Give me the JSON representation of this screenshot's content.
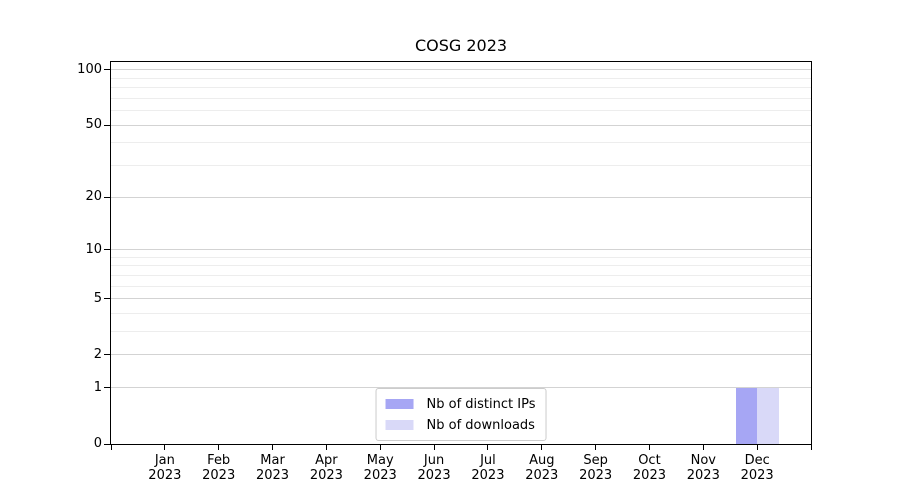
{
  "figure": {
    "background": "#ffffff",
    "spine_color": "#000000",
    "grid_color_major": "#d3d3d3",
    "grid_color_minor": "#ededed"
  },
  "chart_data": {
    "type": "bar",
    "title": "COSG 2023",
    "xlabel": "",
    "ylabel": "",
    "categories": [
      "Jan 2023",
      "Feb 2023",
      "Mar 2023",
      "Apr 2023",
      "May 2023",
      "Jun 2023",
      "Jul 2023",
      "Aug 2023",
      "Sep 2023",
      "Oct 2023",
      "Nov 2023",
      "Dec 2023"
    ],
    "series": [
      {
        "name": "Nb of distinct IPs",
        "color": "#a6a6f4",
        "values": [
          0,
          0,
          0,
          0,
          0,
          0,
          0,
          0,
          0,
          0,
          0,
          1
        ]
      },
      {
        "name": "Nb of downloads",
        "color": "#d9d9f8",
        "values": [
          0,
          0,
          0,
          0,
          0,
          0,
          0,
          0,
          0,
          0,
          0,
          1
        ]
      }
    ],
    "yscale": "log1p",
    "ylim": [
      0,
      110
    ],
    "y_ticks": [
      0,
      1,
      2,
      5,
      10,
      20,
      50,
      100
    ],
    "y_minor_ticks": [
      3,
      4,
      6,
      7,
      8,
      9,
      30,
      40,
      60,
      70,
      80,
      90
    ],
    "grid": true,
    "legend_position": "lower center"
  }
}
